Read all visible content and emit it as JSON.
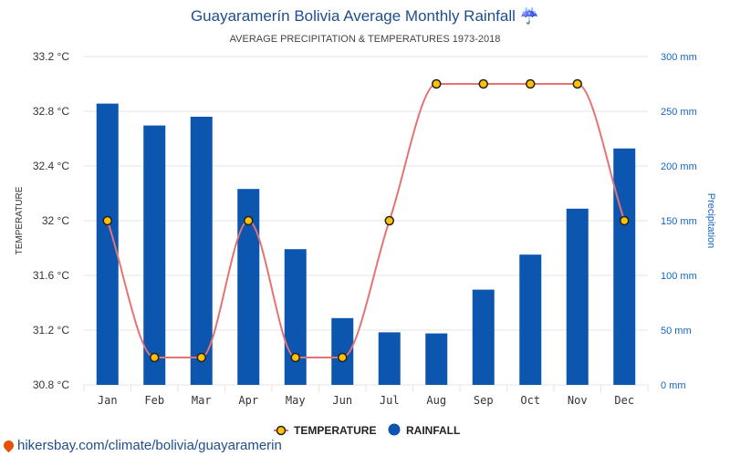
{
  "chart_data": {
    "type": "bar+line",
    "title": "Guayaramerín Bolivia Average Monthly Rainfall",
    "title_icon": "umbrella-rain-icon",
    "subtitle": "AVERAGE PRECIPITATION & TEMPERATURES 1973-2018",
    "categories": [
      "Jan",
      "Feb",
      "Mar",
      "Apr",
      "May",
      "Jun",
      "Jul",
      "Aug",
      "Sep",
      "Oct",
      "Nov",
      "Dec"
    ],
    "series": [
      {
        "name": "TEMPERATURE",
        "kind": "line",
        "axis": "left",
        "color": "#e57373",
        "marker_fill": "#ffc107",
        "values": [
          32,
          31,
          31,
          32,
          31,
          31,
          32,
          33,
          33,
          33,
          33,
          32
        ]
      },
      {
        "name": "RAINFALL",
        "kind": "bar",
        "axis": "right",
        "color": "#0d56b0",
        "values": [
          257,
          237,
          245,
          179,
          124,
          61,
          48,
          47,
          87,
          119,
          161,
          216
        ]
      }
    ],
    "y_left": {
      "label": "TEMPERATURE",
      "range": [
        30.8,
        33.2
      ],
      "ticks": [
        "33.2 °C",
        "32.8 °C",
        "32.4 °C",
        "32 °C",
        "31.6 °C",
        "31.2 °C",
        "30.8 °C"
      ]
    },
    "y_right": {
      "label": "Precipitation",
      "range": [
        0,
        300
      ],
      "ticks": [
        "300 mm",
        "250 mm",
        "200 mm",
        "150 mm",
        "100 mm",
        "50 mm",
        "0 mm"
      ]
    },
    "grid": true,
    "legend_position": "bottom"
  },
  "footer": {
    "text": "hikersbay.com/climate/bolivia/guayaramerin",
    "icon": "location-pin-icon"
  }
}
